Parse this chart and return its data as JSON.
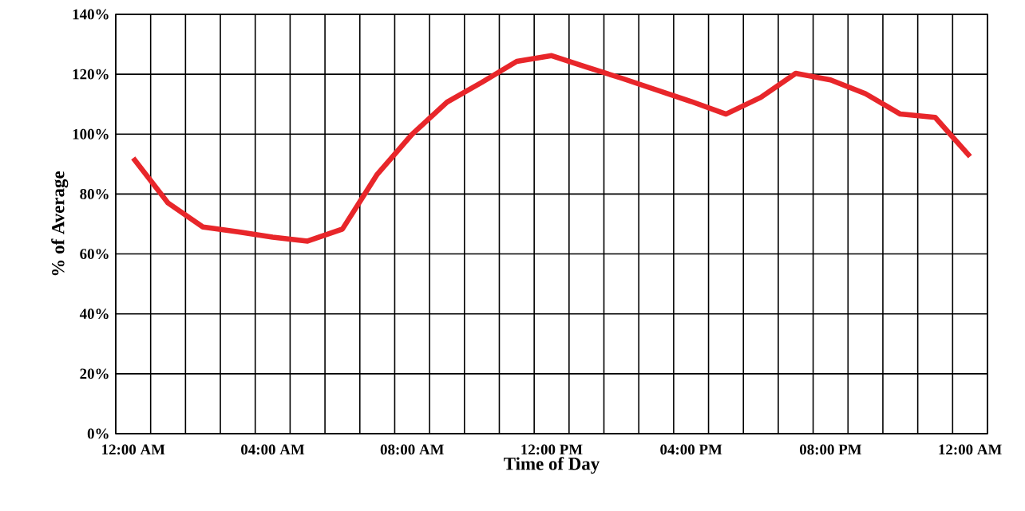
{
  "chart_data": {
    "type": "line",
    "xlabel": "Time of Day",
    "ylabel": "% of Average",
    "categories": [
      "12:00 AM",
      null,
      null,
      null,
      "04:00 AM",
      null,
      null,
      null,
      "08:00 AM",
      null,
      null,
      null,
      "12:00 PM",
      null,
      null,
      null,
      "04:00 PM",
      null,
      null,
      null,
      "08:00 PM",
      null,
      null,
      null,
      "12:00 AM"
    ],
    "series": [
      {
        "color": "#e8262a",
        "values": [
          92,
          77,
          69,
          67.4,
          65.6,
          64.3,
          68.3,
          86.6,
          100,
          110.7,
          117.3,
          124.3,
          126.2,
          122.4,
          118.7,
          114.8,
          110.9,
          106.7,
          112.3,
          120.3,
          118.1,
          113.5,
          106.7,
          105.6,
          92.5
        ]
      }
    ],
    "ylim": [
      0,
      140
    ],
    "yticks": [
      {
        "value": 0,
        "label": "0%"
      },
      {
        "value": 20,
        "label": "20%"
      },
      {
        "value": 40,
        "label": "40%"
      },
      {
        "value": 60,
        "label": "60%"
      },
      {
        "value": 80,
        "label": "80%"
      },
      {
        "value": 100,
        "label": "100%"
      },
      {
        "value": 120,
        "label": "120%"
      },
      {
        "value": 140,
        "label": "140%"
      }
    ],
    "grid": true
  }
}
